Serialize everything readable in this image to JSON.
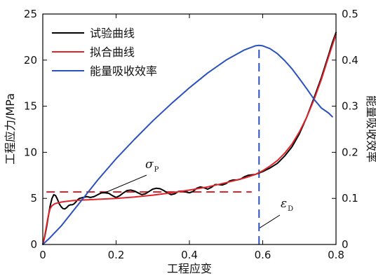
{
  "chart_data": {
    "type": "line",
    "xlabel": "工程应变",
    "ylabel_left": "工程应力/MPa",
    "ylabel_right": "能量吸收效率",
    "xlim": [
      0,
      0.8
    ],
    "ylim_left": [
      0,
      25
    ],
    "ylim_right": [
      0,
      0.5
    ],
    "x_ticks": [
      "0",
      "0.2",
      "0.4",
      "0.6",
      "0.8"
    ],
    "y_left_ticks": [
      "0",
      "5",
      "10",
      "15",
      "20",
      "25"
    ],
    "y_right_ticks": [
      "0",
      "0.1",
      "0.2",
      "0.3",
      "0.4",
      "0.5"
    ],
    "grid": false,
    "legend_position": "top-left",
    "series": [
      {
        "name": "试验曲线",
        "color": "#000000",
        "axis": "left",
        "x": [
          0,
          0.005,
          0.01,
          0.015,
          0.02,
          0.025,
          0.03,
          0.035,
          0.04,
          0.045,
          0.05,
          0.055,
          0.06,
          0.065,
          0.07,
          0.075,
          0.08,
          0.085,
          0.09,
          0.095,
          0.1,
          0.11,
          0.12,
          0.13,
          0.14,
          0.15,
          0.16,
          0.17,
          0.18,
          0.19,
          0.2,
          0.21,
          0.22,
          0.23,
          0.24,
          0.25,
          0.26,
          0.27,
          0.28,
          0.29,
          0.3,
          0.31,
          0.32,
          0.33,
          0.34,
          0.35,
          0.36,
          0.37,
          0.38,
          0.39,
          0.4,
          0.41,
          0.42,
          0.43,
          0.44,
          0.45,
          0.46,
          0.47,
          0.48,
          0.49,
          0.5,
          0.51,
          0.52,
          0.53,
          0.54,
          0.55,
          0.56,
          0.57,
          0.58,
          0.59,
          0.6,
          0.62,
          0.64,
          0.66,
          0.68,
          0.7,
          0.72,
          0.74,
          0.76,
          0.78,
          0.79,
          0.8
        ],
        "y": [
          0,
          0.8,
          1.8,
          3,
          4.2,
          5,
          5.4,
          5.3,
          4.9,
          4.4,
          4.1,
          3.9,
          3.85,
          4,
          4.2,
          4.3,
          4.3,
          4.4,
          4.6,
          4.85,
          5,
          5.1,
          5.2,
          5.1,
          5.2,
          5.4,
          5.6,
          5.6,
          5.55,
          5.3,
          5.1,
          5.3,
          5.6,
          5.85,
          5.9,
          5.8,
          5.6,
          5.4,
          5.5,
          5.75,
          6,
          6.1,
          6.05,
          5.85,
          5.6,
          5.4,
          5.5,
          5.75,
          5.8,
          5.7,
          5.6,
          5.75,
          6.1,
          6.25,
          6.15,
          6,
          6.2,
          6.5,
          6.5,
          6.45,
          6.6,
          6.9,
          7,
          7,
          7.1,
          7.35,
          7.5,
          7.55,
          7.6,
          7.75,
          7.9,
          8.3,
          8.8,
          9.6,
          10.6,
          12,
          13.8,
          15.9,
          18.1,
          20.6,
          21.9,
          23
        ]
      },
      {
        "name": "拟合曲线",
        "color": "#e0242b",
        "axis": "left",
        "x": [
          0,
          0.005,
          0.01,
          0.015,
          0.02,
          0.025,
          0.03,
          0.035,
          0.04,
          0.05,
          0.06,
          0.08,
          0.1,
          0.15,
          0.2,
          0.25,
          0.3,
          0.35,
          0.4,
          0.45,
          0.5,
          0.55,
          0.58,
          0.6,
          0.62,
          0.64,
          0.66,
          0.68,
          0.7,
          0.72,
          0.74,
          0.76,
          0.78,
          0.8
        ],
        "y": [
          0,
          0.9,
          2,
          3.1,
          3.9,
          4.2,
          4.35,
          4.45,
          4.5,
          4.6,
          4.65,
          4.75,
          4.8,
          4.9,
          5.0,
          5.15,
          5.35,
          5.6,
          5.9,
          6.25,
          6.7,
          7.2,
          7.6,
          8.0,
          8.5,
          9.1,
          9.9,
          10.9,
          12.2,
          13.8,
          15.7,
          17.9,
          20.4,
          22.8
        ]
      },
      {
        "name": "能量吸收效率",
        "color": "#2a52be",
        "axis": "right",
        "x": [
          0,
          0.02,
          0.05,
          0.1,
          0.15,
          0.2,
          0.25,
          0.3,
          0.35,
          0.4,
          0.45,
          0.5,
          0.55,
          0.58,
          0.59,
          0.6,
          0.62,
          0.64,
          0.66,
          0.68,
          0.7,
          0.72,
          0.74,
          0.76,
          0.78,
          0.79
        ],
        "y": [
          0,
          0.015,
          0.04,
          0.09,
          0.14,
          0.186,
          0.228,
          0.268,
          0.305,
          0.34,
          0.372,
          0.4,
          0.422,
          0.431,
          0.432,
          0.431,
          0.425,
          0.414,
          0.399,
          0.381,
          0.36,
          0.338,
          0.315,
          0.296,
          0.285,
          0.277
        ]
      }
    ],
    "reference_lines": [
      {
        "orientation": "horizontal",
        "axis": "left",
        "y": 5.7,
        "x_range": [
          0.01,
          0.57
        ],
        "color": "#e0242b",
        "style": "dashed"
      },
      {
        "orientation": "vertical",
        "x": 0.59,
        "y_range_right": [
          0,
          0.432
        ],
        "color": "#2a52be",
        "style": "dashed"
      }
    ],
    "annotations": [
      {
        "symbol": "σ",
        "subscript": "P",
        "x": 0.25,
        "y_left": 8.2,
        "arrow_to": {
          "x": 0.17,
          "y_left": 5.7
        }
      },
      {
        "symbol": "ε",
        "subscript": "D",
        "x": 0.64,
        "y_left": 4.3,
        "arrow_to": {
          "x": 0.59,
          "y_left": 1.8
        }
      }
    ]
  }
}
